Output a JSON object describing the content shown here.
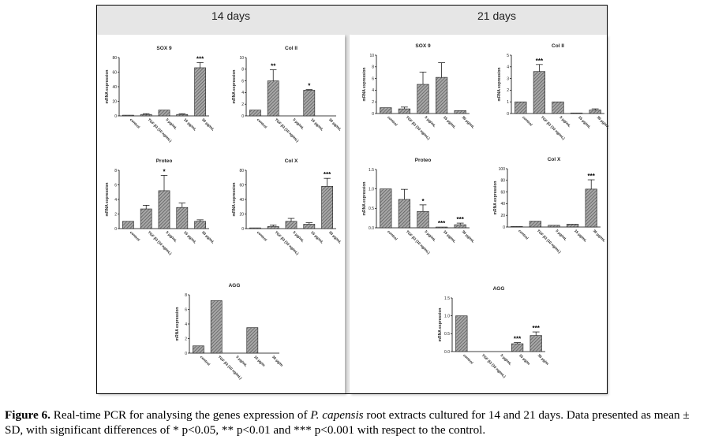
{
  "figure": {
    "left_title": "14 days",
    "right_title": "21 days"
  },
  "caption": {
    "label": "Figure 6.",
    "part1": " Real-time PCR for analysing the genes expression of ",
    "species": "P. capensis",
    "part2": " root extracts cultured for 14 and 21 days. Data presented as mean ± SD, with significant differences of * p<0.05, ** p<0.01 and *** p<0.001 with respect to the control."
  },
  "colors": {
    "bar_fill": "#9a9a9a",
    "hatch": "#555555",
    "axis": "#000000"
  },
  "chart_data": [
    {
      "id": "d14-sox9",
      "type": "bar",
      "title": "SOX 9",
      "ylabel": "mRNA expression",
      "categories": [
        "control",
        "TGF β3 (10 ng/mL)",
        "5 μg/mL",
        "15 μg/mL",
        "30 μg/mL"
      ],
      "values": [
        1,
        2,
        8,
        2,
        66
      ],
      "errors": [
        0,
        1,
        0,
        1,
        7
      ],
      "sig": [
        "",
        "",
        "",
        "",
        "***"
      ],
      "ylim": [
        0,
        80
      ],
      "yticks": [
        "0",
        "20",
        "40",
        "60",
        "80"
      ]
    },
    {
      "id": "d14-col2",
      "type": "bar",
      "title": "Col II",
      "ylabel": "mRNA expression",
      "categories": [
        "control",
        "TGF β3 (10 ng/mL)",
        "5 μg/mL",
        "15 μg/mL",
        "30 μg/mL"
      ],
      "values": [
        1,
        6,
        0,
        4.4,
        0
      ],
      "errors": [
        0,
        1.9,
        0,
        0.1,
        0
      ],
      "sig": [
        "",
        "**",
        "",
        "*",
        ""
      ],
      "ylim": [
        0,
        10
      ],
      "yticks": [
        "0",
        "2",
        "4",
        "6",
        "8",
        "10"
      ]
    },
    {
      "id": "d14-proteo",
      "type": "bar",
      "title": "Proteo",
      "ylabel": "mRNA expression",
      "categories": [
        "control",
        "TGF β3 (10 ng/mL)",
        "5 μg/mL",
        "15 μg/mL",
        "30 μg/mL"
      ],
      "values": [
        1,
        2.7,
        5.2,
        2.9,
        1
      ],
      "errors": [
        0,
        0.5,
        2.1,
        0.6,
        0.2
      ],
      "sig": [
        "",
        "",
        "*",
        "",
        ""
      ],
      "ylim": [
        0,
        8
      ],
      "yticks": [
        "0",
        "2",
        "4",
        "6",
        "8"
      ]
    },
    {
      "id": "d14-colx",
      "type": "bar",
      "title": "Col X",
      "ylabel": "mRNA expression",
      "categories": [
        "control",
        "TGF β3 (10 ng/mL)",
        "5 μg/mL",
        "15 μg/mL",
        "30 μg/mL"
      ],
      "values": [
        1,
        3,
        10,
        6,
        58
      ],
      "errors": [
        0,
        2,
        4,
        2,
        11
      ],
      "sig": [
        "",
        "",
        "",
        "",
        "***"
      ],
      "ylim": [
        0,
        80
      ],
      "yticks": [
        "0",
        "20",
        "40",
        "60",
        "80"
      ]
    },
    {
      "id": "d14-agg",
      "type": "bar",
      "title": "AGG",
      "ylabel": "mRNA expression",
      "categories": [
        "control",
        "TGF β3 (10 ng/mL)",
        "5 μg/mL",
        "15 μg/m",
        "30 μg/m"
      ],
      "values": [
        1,
        7.2,
        0,
        3.5,
        0
      ],
      "errors": [
        0,
        0,
        0,
        0,
        0
      ],
      "sig": [
        "",
        "",
        "",
        "",
        ""
      ],
      "ylim": [
        0,
        8
      ],
      "yticks": [
        "0",
        "2",
        "4",
        "6",
        "8"
      ]
    },
    {
      "id": "d21-sox9",
      "type": "bar",
      "title": "SOX 9",
      "ylabel": "mRNA expression",
      "categories": [
        "control",
        "TGF β3 (10 ng/mL)",
        "5 μg/mL",
        "15 μg/mL",
        "30 μg/mL"
      ],
      "values": [
        1,
        0.8,
        5,
        6.2,
        0.5
      ],
      "errors": [
        0,
        0.3,
        2.1,
        2.5,
        0
      ],
      "sig": [
        "",
        "",
        "",
        "",
        ""
      ],
      "ylim": [
        0,
        10
      ],
      "yticks": [
        "0",
        "2",
        "4",
        "6",
        "8",
        "10"
      ]
    },
    {
      "id": "d21-col2",
      "type": "bar",
      "title": "Col II",
      "ylabel": "mRNA expression",
      "categories": [
        "control",
        "TGF β3 (10 ng/mL)",
        "5 μg/mL",
        "15 μg/mL",
        "30 μg/mL"
      ],
      "values": [
        1,
        3.6,
        1,
        0.05,
        0.3
      ],
      "errors": [
        0,
        0.6,
        0,
        0,
        0.1
      ],
      "sig": [
        "",
        "***",
        "",
        "",
        ""
      ],
      "ylim": [
        0,
        5
      ],
      "yticks": [
        "0",
        "1",
        "2",
        "3",
        "4",
        "5"
      ]
    },
    {
      "id": "d21-proteo",
      "type": "bar",
      "title": "Proteo",
      "ylabel": "mRNA expression",
      "categories": [
        "control",
        "TGF β3 (10 ng/mL)",
        "5 μg/mL",
        "15 μg/mL",
        "30 μg/mL"
      ],
      "values": [
        1,
        0.73,
        0.42,
        0.02,
        0.08
      ],
      "errors": [
        0,
        0.26,
        0.17,
        0,
        0.04
      ],
      "sig": [
        "",
        "",
        "*",
        "***",
        "***"
      ],
      "ylim": [
        0,
        1.5
      ],
      "yticks": [
        "0.0",
        "0.5",
        "1.0",
        "1.5"
      ]
    },
    {
      "id": "d21-colx",
      "type": "bar",
      "title": "Col X",
      "ylabel": "mRNA expression",
      "categories": [
        "control",
        "TGF β3 (10 ng/mL)",
        "5 μg/mL",
        "15 μg/mL",
        "30 μg/mL"
      ],
      "values": [
        1,
        10,
        3,
        5,
        65
      ],
      "errors": [
        0,
        0,
        0,
        0,
        16
      ],
      "sig": [
        "",
        "",
        "",
        "",
        "***"
      ],
      "ylim": [
        0,
        100
      ],
      "yticks": [
        "0",
        "20",
        "40",
        "60",
        "80",
        "100"
      ]
    },
    {
      "id": "d21-agg",
      "type": "bar",
      "title": "AGG",
      "ylabel": "mRNA expression",
      "categories": [
        "control",
        "TGF β3 (10 ng/mL)",
        "5 μg/mL",
        "15 μg/m",
        "30 μg/m"
      ],
      "values": [
        1,
        0,
        0,
        0.22,
        0.45
      ],
      "errors": [
        0,
        0,
        0,
        0.03,
        0.1
      ],
      "sig": [
        "",
        "",
        "",
        "***",
        "***"
      ],
      "ylim": [
        0,
        1.5
      ],
      "yticks": [
        "0.0",
        "0.5",
        "1.0",
        "1.5"
      ]
    }
  ]
}
